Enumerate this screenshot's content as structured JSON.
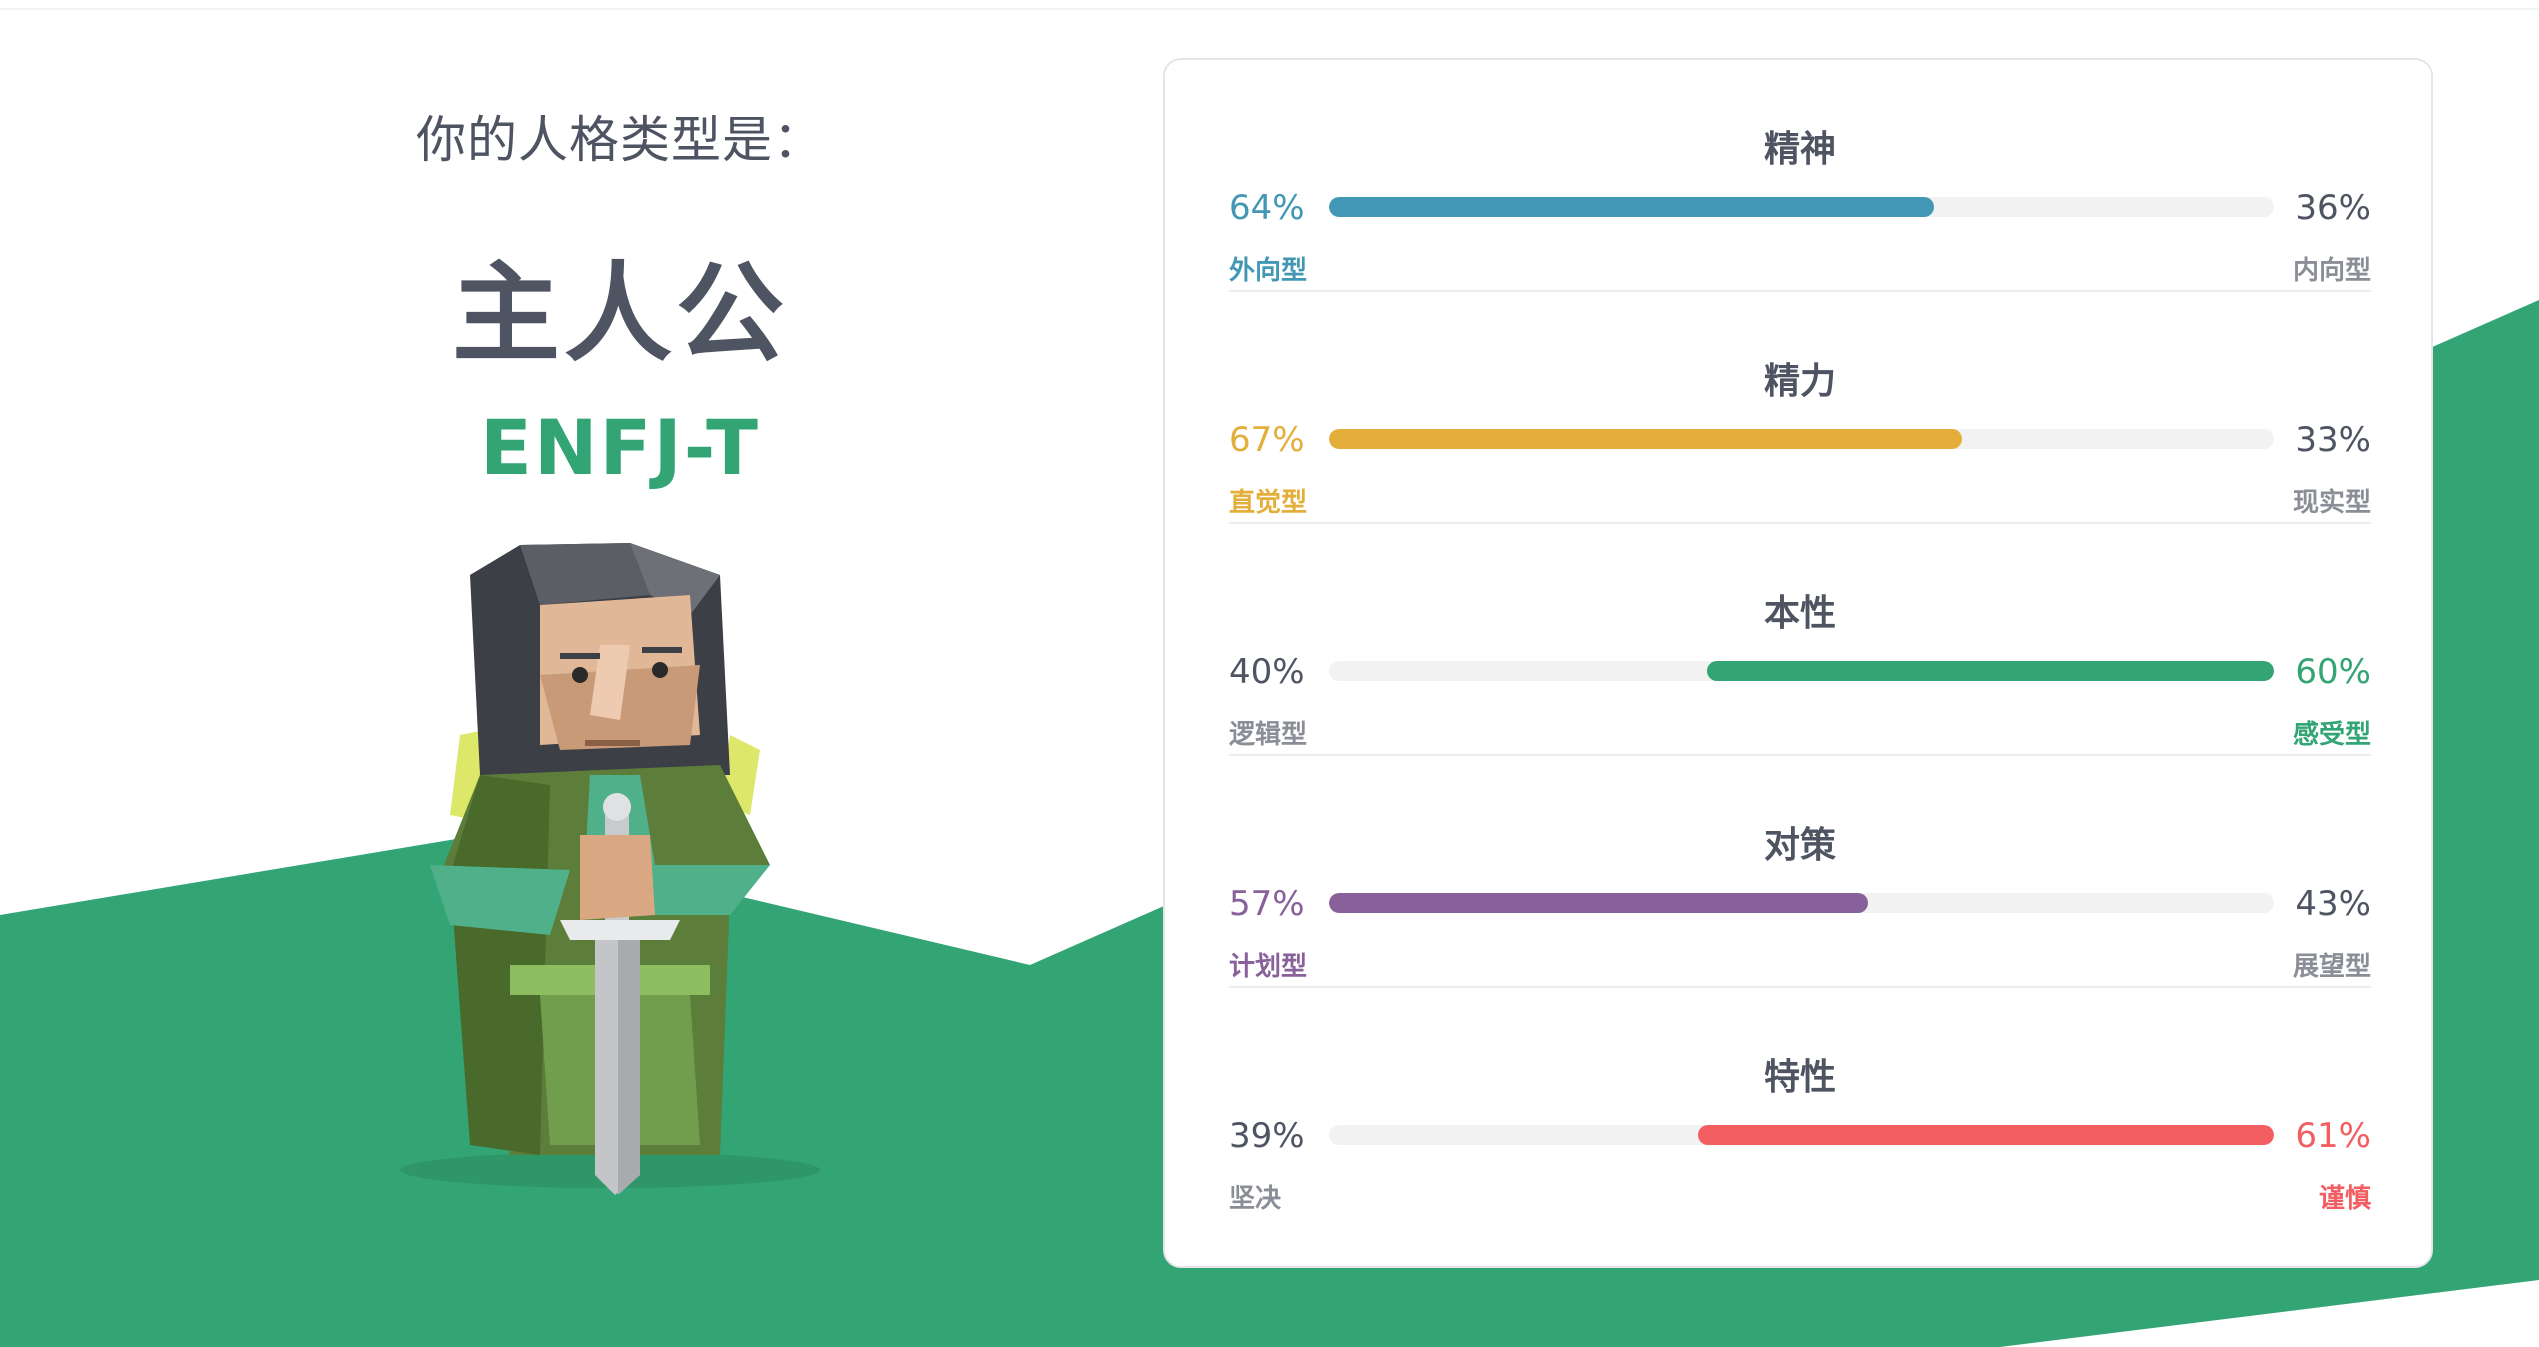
{
  "hero": {
    "intro": "你的人格类型是：",
    "type_name": "主人公",
    "type_code": "ENFJ-T"
  },
  "colors": {
    "green": "#33a474",
    "text": "#4e5461",
    "muted": "#8b8e96"
  },
  "traits": [
    {
      "title": "精神",
      "left_pct": "64%",
      "right_pct": "36%",
      "left_label": "外向型",
      "right_label": "内向型",
      "value": 0.64,
      "dominant": "left",
      "color": "#4298b4"
    },
    {
      "title": "精力",
      "left_pct": "67%",
      "right_pct": "33%",
      "left_label": "直觉型",
      "right_label": "现实型",
      "value": 0.67,
      "dominant": "left",
      "color": "#e4ae3a"
    },
    {
      "title": "本性",
      "left_pct": "40%",
      "right_pct": "60%",
      "left_label": "逻辑型",
      "right_label": "感受型",
      "value": 0.6,
      "dominant": "right",
      "color": "#33a474"
    },
    {
      "title": "对策",
      "left_pct": "57%",
      "right_pct": "43%",
      "left_label": "计划型",
      "right_label": "展望型",
      "value": 0.57,
      "dominant": "left",
      "color": "#88619a"
    },
    {
      "title": "特性",
      "left_pct": "39%",
      "right_pct": "61%",
      "left_label": "坚决",
      "right_label": "谨慎",
      "value": 0.61,
      "dominant": "right",
      "color": "#f25e62"
    }
  ]
}
